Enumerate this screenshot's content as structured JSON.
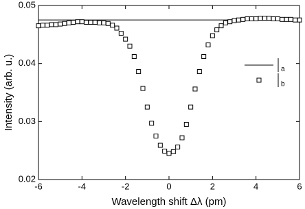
{
  "chart_data": {
    "type": "scatter",
    "x_label": "Wavelength shift Δλ (pm)",
    "y_label": "Intensity (arb. u.)",
    "xlim": [
      -6,
      6
    ],
    "xticks": [
      -6,
      -4,
      -2,
      0,
      2,
      4,
      6
    ],
    "ylim": [
      0.02,
      0.05
    ],
    "yticks": [
      0.02,
      0.03,
      0.04,
      0.05
    ],
    "series": [
      {
        "name": "a",
        "style": "line",
        "color": "#000000",
        "x": [
          -6,
          6
        ],
        "values": [
          0.0475,
          0.0475
        ]
      },
      {
        "name": "b",
        "style": "marker",
        "color": "#000000",
        "x": [
          -6,
          -5.8,
          -5.6,
          -5.4,
          -5.2,
          -5,
          -4.8,
          -4.6,
          -4.4,
          -4.2,
          -4,
          -3.8,
          -3.6,
          -3.4,
          -3.2,
          -3,
          -2.8,
          -2.6,
          -2.4,
          -2.2,
          -2,
          -1.8,
          -1.6,
          -1.4,
          -1.2,
          -1,
          -0.8,
          -0.6,
          -0.4,
          -0.2,
          0,
          0.2,
          0.4,
          0.6,
          0.8,
          1,
          1.2,
          1.4,
          1.6,
          1.8,
          2,
          2.2,
          2.4,
          2.6,
          2.8,
          3,
          3.2,
          3.4,
          3.6,
          3.8,
          4,
          4.2,
          4.4,
          4.6,
          4.8,
          5,
          5.2,
          5.4,
          5.6,
          5.8,
          6
        ],
        "values": [
          0.0465,
          0.0466,
          0.0466,
          0.0467,
          0.0467,
          0.0468,
          0.0469,
          0.047,
          0.0471,
          0.0472,
          0.0472,
          0.0471,
          0.0471,
          0.0471,
          0.047,
          0.047,
          0.0469,
          0.0466,
          0.0461,
          0.0452,
          0.0442,
          0.043,
          0.0412,
          0.0386,
          0.0357,
          0.0325,
          0.0297,
          0.0275,
          0.0259,
          0.0249,
          0.0245,
          0.0248,
          0.0256,
          0.0272,
          0.0295,
          0.0325,
          0.0356,
          0.0386,
          0.0412,
          0.0432,
          0.0448,
          0.0458,
          0.0465,
          0.047,
          0.0472,
          0.0474,
          0.0475,
          0.0476,
          0.0477,
          0.0477,
          0.0477,
          0.0478,
          0.0478,
          0.0478,
          0.0477,
          0.0477,
          0.0476,
          0.0476,
          0.0476,
          0.0475,
          0.0475
        ]
      }
    ]
  }
}
